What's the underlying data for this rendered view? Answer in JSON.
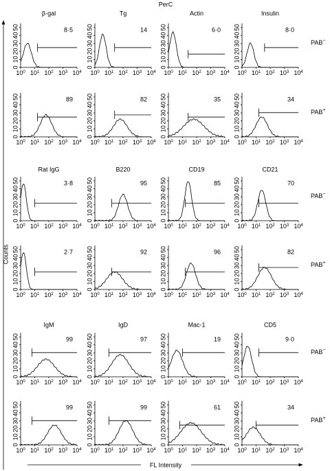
{
  "header": "PerC",
  "y_label": "Counts",
  "x_label": "FL Intensity",
  "axis": {
    "yticks": [
      "0",
      "10",
      "20",
      "30",
      "40",
      "50"
    ],
    "xticks": [
      {
        "base": "10",
        "exp": "0"
      },
      {
        "base": "10",
        "exp": "1"
      },
      {
        "base": "10",
        "exp": "2"
      },
      {
        "base": "10",
        "exp": "3"
      },
      {
        "base": "10",
        "exp": "4"
      }
    ]
  },
  "blocks": [
    {
      "columns": [
        "β-gal",
        "Tg",
        "Actin",
        "Insulin"
      ],
      "rows": [
        {
          "label": {
            "text": "PAB",
            "sup": "−"
          },
          "values": [
            "8·5",
            "14",
            "6·0",
            "8·0"
          ]
        },
        {
          "label": {
            "text": "PAB",
            "sup": "+"
          },
          "values": [
            "89",
            "82",
            "35",
            "34"
          ]
        }
      ]
    },
    {
      "columns": [
        "Rat IgG",
        "B220",
        "CD19",
        "CD21"
      ],
      "rows": [
        {
          "label": {
            "text": "PAB",
            "sup": "−"
          },
          "values": [
            "3·8",
            "95",
            "85",
            "70"
          ]
        },
        {
          "label": {
            "text": "PAB",
            "sup": "+"
          },
          "values": [
            "2·7",
            "92",
            "96",
            "82"
          ]
        }
      ]
    },
    {
      "columns": [
        "IgM",
        "IgD",
        "Mac-1",
        "CD5"
      ],
      "rows": [
        {
          "label": {
            "text": "PAB",
            "sup": "−"
          },
          "values": [
            "99",
            "97",
            "19",
            "9·0"
          ]
        },
        {
          "label": {
            "text": "PAB",
            "sup": "+"
          },
          "values": [
            "99",
            "99",
            "61",
            "34"
          ]
        }
      ]
    }
  ]
}
